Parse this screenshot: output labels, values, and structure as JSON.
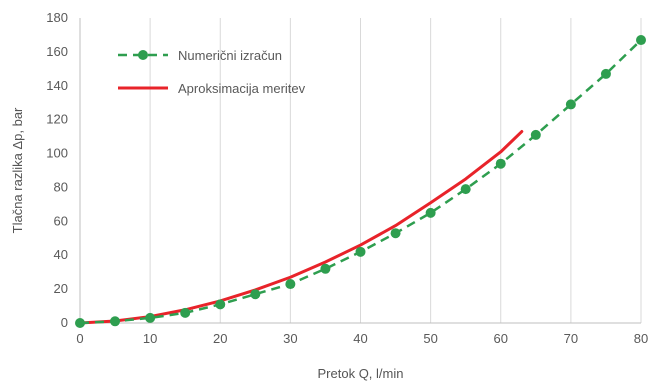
{
  "chart_data": {
    "type": "line",
    "title": "",
    "xlabel": "Pretok Q, l/min",
    "ylabel": "Tlačna razlika Δp, bar",
    "xlim": [
      0,
      80
    ],
    "ylim": [
      0,
      180
    ],
    "x_ticks": [
      0,
      10,
      20,
      30,
      40,
      50,
      60,
      70,
      80
    ],
    "y_ticks": [
      0,
      20,
      40,
      60,
      80,
      100,
      120,
      140,
      160,
      180
    ],
    "grid": "vertical",
    "legend_position": "top-left",
    "series": [
      {
        "name": "Numerični izračun",
        "style": "dashed-markers",
        "color": "#2e9e4f",
        "x": [
          0,
          5,
          10,
          15,
          20,
          25,
          30,
          35,
          40,
          45,
          50,
          55,
          60,
          65,
          70,
          75,
          80
        ],
        "y": [
          0,
          1,
          3,
          6,
          11,
          17,
          23,
          32,
          42,
          53,
          65,
          79,
          94,
          111,
          129,
          147,
          167
        ]
      },
      {
        "name": "Aproksimacija meritev",
        "style": "solid",
        "color": "#e8232a",
        "x": [
          0,
          5,
          10,
          15,
          20,
          25,
          30,
          35,
          40,
          45,
          50,
          55,
          60,
          63
        ],
        "y": [
          0,
          1.2,
          3.8,
          7.8,
          13,
          19.5,
          27,
          36,
          46,
          57.5,
          71,
          85,
          101,
          113
        ]
      }
    ]
  }
}
